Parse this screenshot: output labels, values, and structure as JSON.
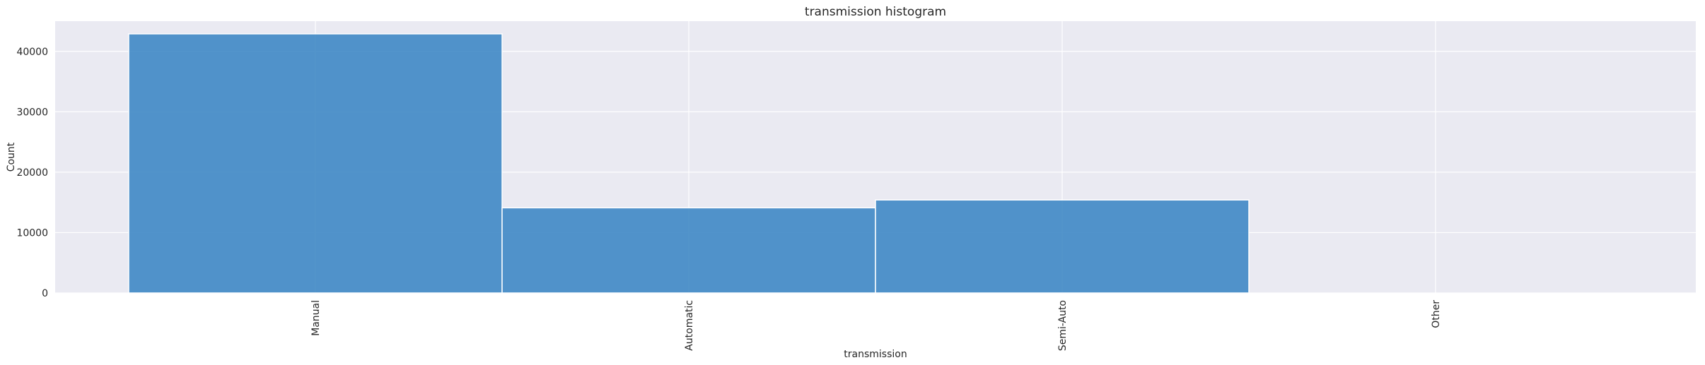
{
  "chart_data": {
    "type": "bar",
    "title": "transmission histogram",
    "xlabel": "transmission",
    "ylabel": "Count",
    "categories": [
      "Manual",
      "Automatic",
      "Semi-Auto",
      "Other"
    ],
    "values": [
      42900,
      14100,
      15400,
      0
    ],
    "ylim": [
      0,
      45000
    ],
    "yticks": [
      0,
      10000,
      20000,
      30000,
      40000
    ],
    "ytick_labels": [
      "0",
      "10000",
      "20000",
      "30000",
      "40000"
    ],
    "grid": true,
    "x_tick_rotation": "vertical",
    "colors": {
      "bar": "#3f88c5",
      "bar_edge": "#ffffff",
      "plot_background": "#eaeaf2",
      "grid": "#ffffff",
      "text": "#262626"
    }
  }
}
